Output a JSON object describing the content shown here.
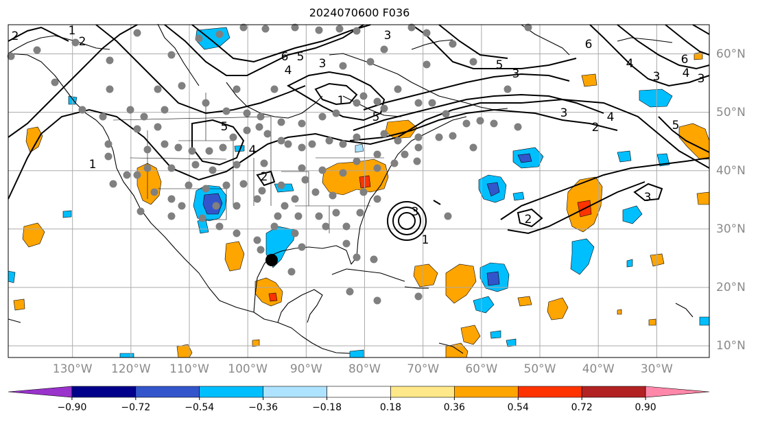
{
  "title": "2024070600 F036",
  "map": {
    "projection": "equirectangular",
    "lon_labels": [
      "130°W",
      "120°W",
      "110°W",
      "100°W",
      "90°W",
      "80°W",
      "70°W",
      "60°W",
      "50°W",
      "40°W",
      "30°W"
    ],
    "lon_values": [
      -130,
      -120,
      -110,
      -100,
      -90,
      -80,
      -70,
      -60,
      -50,
      -40,
      -30
    ],
    "lat_labels": [
      "60°N",
      "50°N",
      "40°N",
      "30°N",
      "20°N",
      "10°N"
    ],
    "lat_values": [
      60,
      50,
      40,
      30,
      20,
      10
    ],
    "lon_range": [
      -141,
      -21
    ],
    "lat_range": [
      8,
      65
    ],
    "gridlines": true,
    "contour_labels": [
      "1",
      "2",
      "3",
      "4",
      "5",
      "6"
    ],
    "colors": {
      "coast": "#000000",
      "grid": "#aaaaaa",
      "station_dot": "#808080",
      "storm_marker": "#000000"
    }
  },
  "colorbar": {
    "tick_labels": [
      "−0.90",
      "−0.72",
      "−0.54",
      "−0.36",
      "−0.18",
      "0.18",
      "0.36",
      "0.54",
      "0.72",
      "0.90"
    ],
    "tick_values": [
      -0.9,
      -0.72,
      -0.54,
      -0.36,
      -0.18,
      0.18,
      0.36,
      0.54,
      0.72,
      0.9
    ],
    "colors": [
      "#9933cc",
      "#00008b",
      "#3355cc",
      "#00bfff",
      "#aee3ff",
      "#ffffff",
      "#ffe88a",
      "#ffa500",
      "#ff3300",
      "#b22222",
      "#ff88aa"
    ],
    "extend": "both"
  }
}
